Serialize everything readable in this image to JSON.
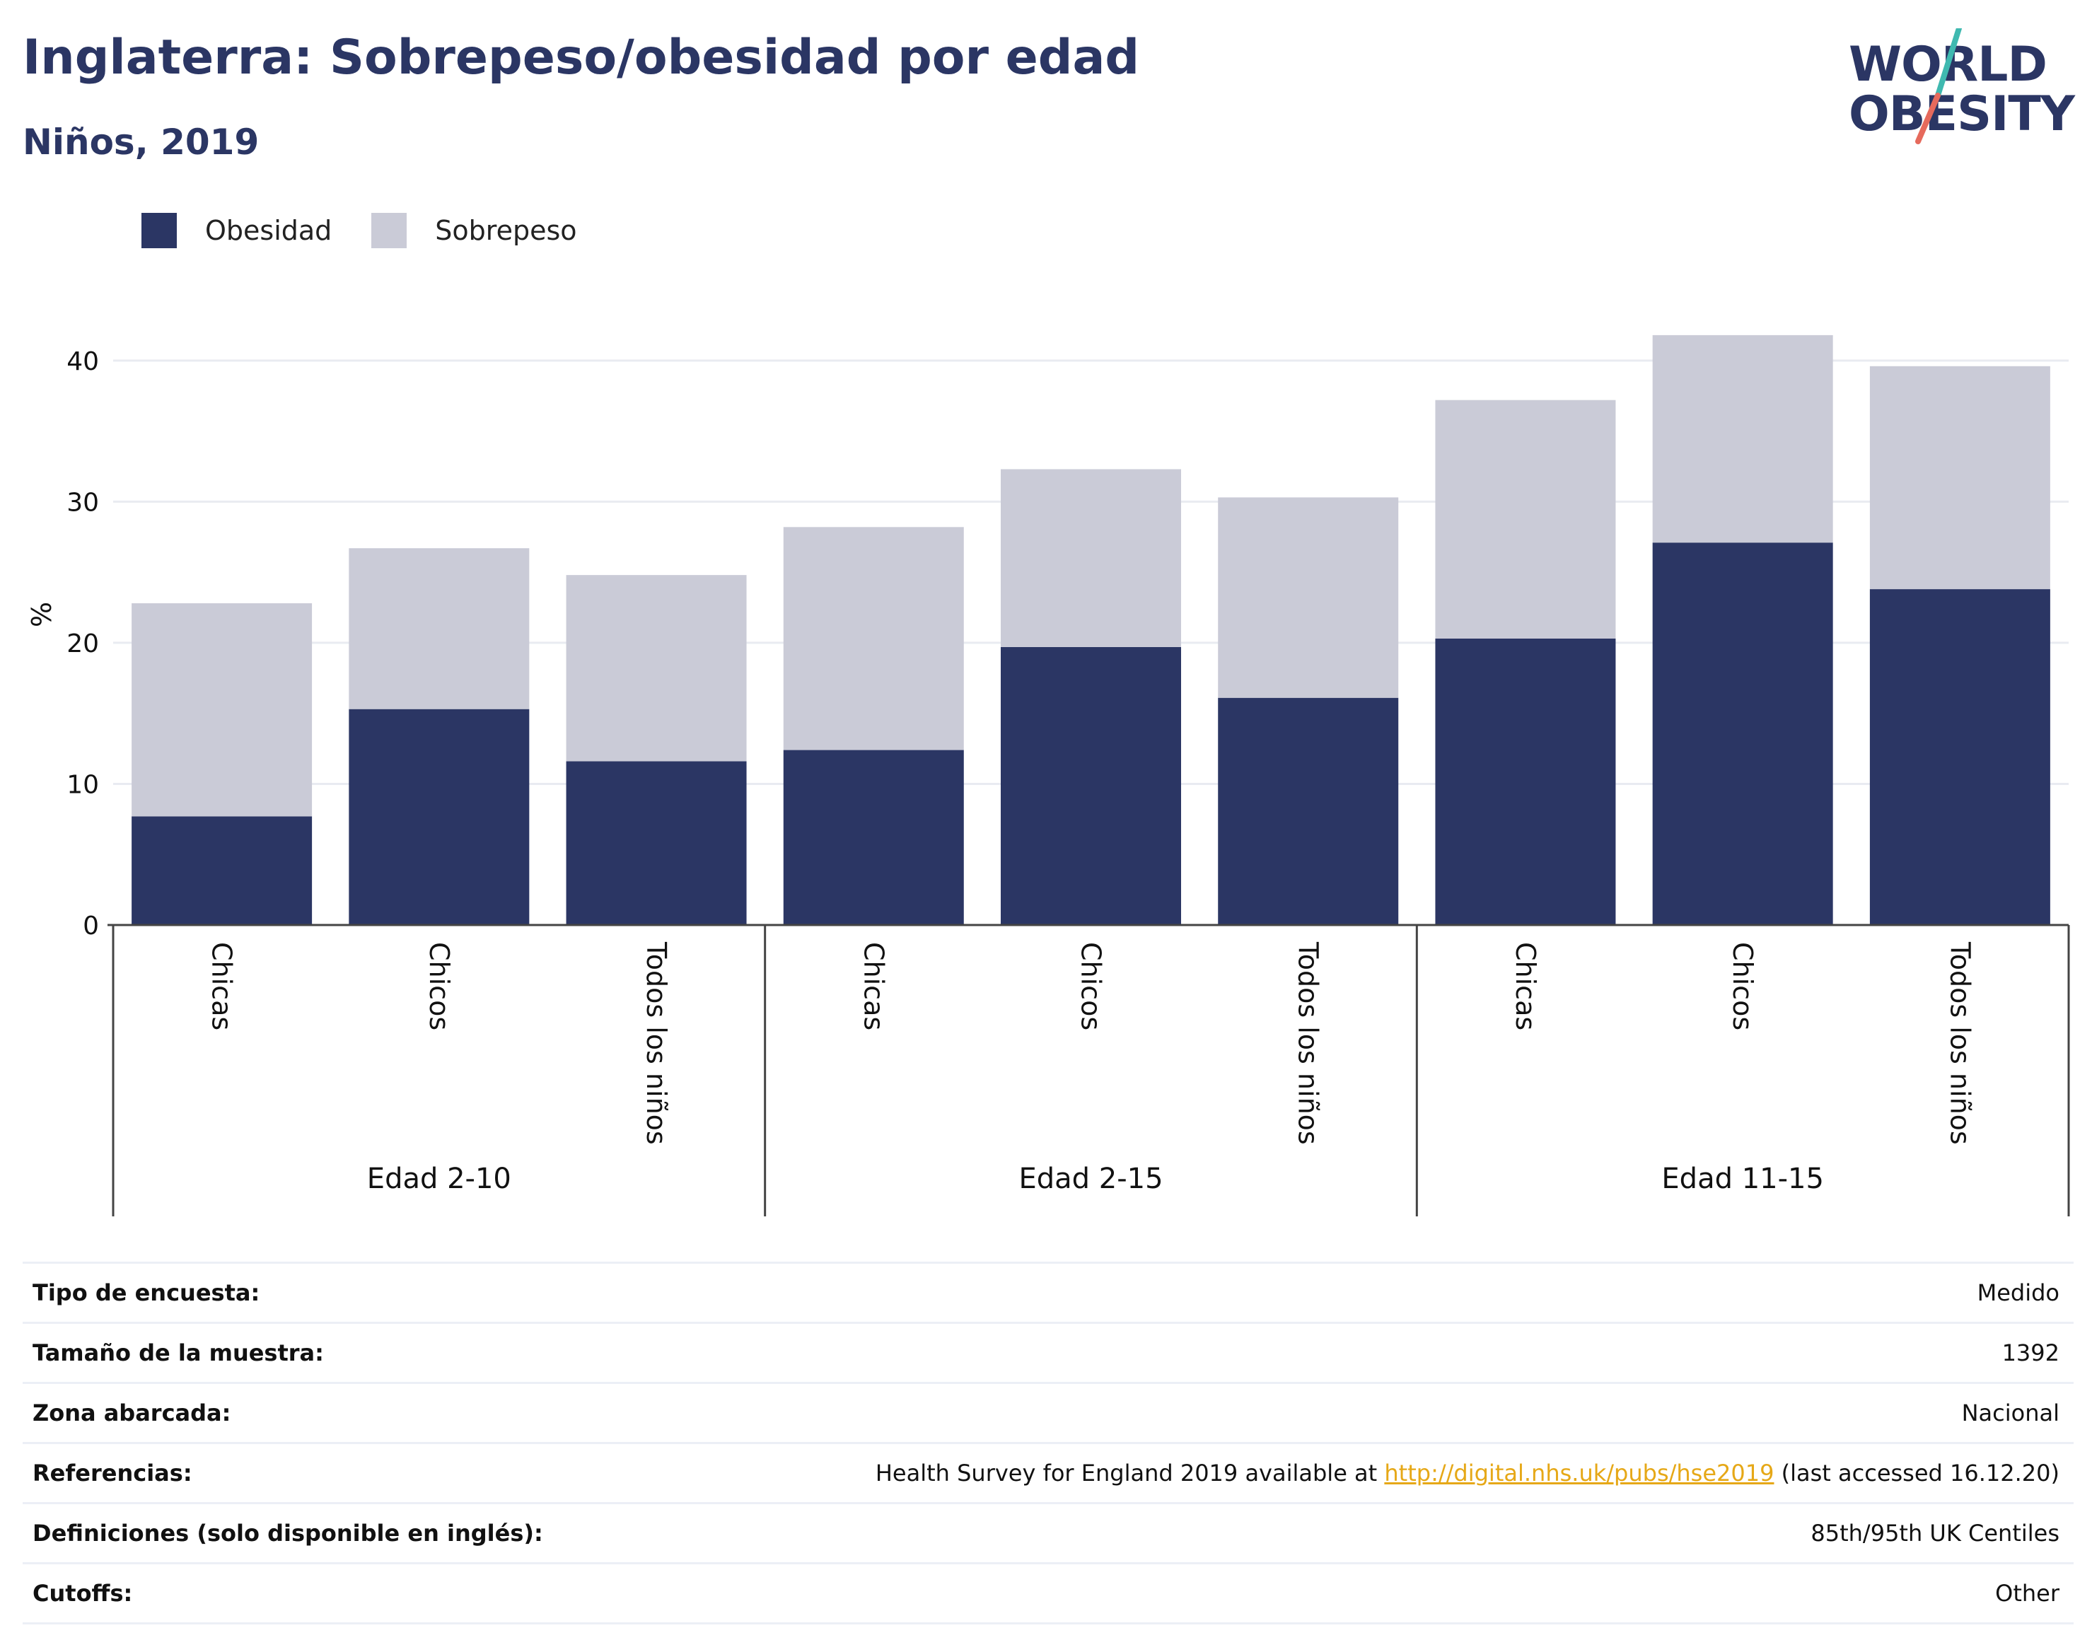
{
  "header": {
    "title": "Inglaterra: Sobrepeso/obesidad por edad",
    "subtitle": "Niños, 2019"
  },
  "logo": {
    "line1": "WORLD",
    "line2": "OBESITY",
    "colors": {
      "text": "#2b3664",
      "slash_top": "#3fb9b0",
      "slash_bottom": "#e66a5c"
    }
  },
  "legend": [
    {
      "label": "Obesidad",
      "color": "#2b3664"
    },
    {
      "label": "Sobrepeso",
      "color": "#cacbd7"
    }
  ],
  "chart_data": {
    "type": "bar",
    "stacked": true,
    "ylabel": "%",
    "ylim": [
      0,
      44
    ],
    "yticks": [
      0,
      10,
      20,
      30,
      40
    ],
    "grid": true,
    "legend_position": "top-left",
    "groups": [
      {
        "label": "Edad 2-10",
        "categories": [
          "Chicas",
          "Chicos",
          "Todos los niños"
        ]
      },
      {
        "label": "Edad 2-15",
        "categories": [
          "Chicas",
          "Chicos",
          "Todos los niños"
        ]
      },
      {
        "label": "Edad 11-15",
        "categories": [
          "Chicas",
          "Chicos",
          "Todos los niños"
        ]
      }
    ],
    "series": [
      {
        "name": "Obesidad",
        "color": "#2b3664",
        "values": [
          7.7,
          15.3,
          11.6,
          12.4,
          19.7,
          16.1,
          20.3,
          27.1,
          23.8
        ]
      },
      {
        "name": "Sobrepeso",
        "color": "#cacbd7",
        "values": [
          15.1,
          11.4,
          13.2,
          15.8,
          12.6,
          14.2,
          16.9,
          14.7,
          15.8
        ]
      }
    ]
  },
  "info": {
    "rows": [
      {
        "key": "Tipo de encuesta:",
        "value": "Medido"
      },
      {
        "key": "Tamaño de la muestra:",
        "value": "1392"
      },
      {
        "key": "Zona abarcada:",
        "value": "Nacional"
      },
      {
        "key": "Definiciones (solo disponible en inglés):",
        "value": "85th/95th UK Centiles"
      },
      {
        "key": "Cutoffs:",
        "value": "Other"
      }
    ],
    "references": {
      "key": "Referencias:",
      "prefix": "Health Survey for England 2019 available at ",
      "link": "http://digital.nhs.uk/pubs/hse2019",
      "suffix": " (last accessed 16.12.20)"
    }
  }
}
